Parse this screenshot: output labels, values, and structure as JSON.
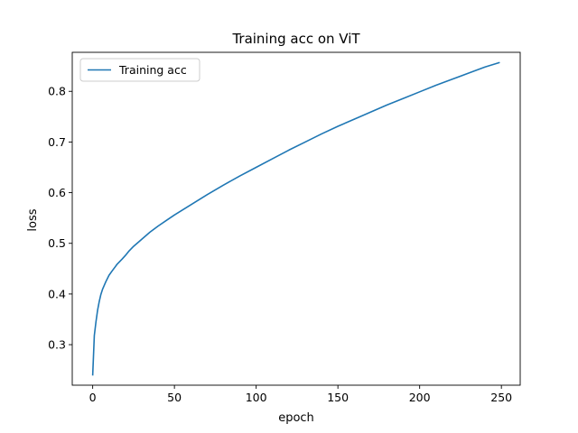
{
  "chart_data": {
    "type": "line",
    "title": "Training acc on ViT",
    "xlabel": "epoch",
    "ylabel": "loss",
    "xlim": [
      -12.5,
      261.5
    ],
    "ylim": [
      0.22,
      0.877
    ],
    "xticks": [
      0,
      50,
      100,
      150,
      200,
      250
    ],
    "yticks": [
      0.3,
      0.4,
      0.5,
      0.6,
      0.7,
      0.8
    ],
    "grid": false,
    "legend": {
      "position": "top-left",
      "entries": [
        "Training acc"
      ]
    },
    "colors": {
      "line": "#1f77b4",
      "axes": "#000000",
      "background": "#ffffff",
      "legend_border": "#cccccc"
    },
    "series": [
      {
        "name": "Training acc",
        "x": [
          0,
          1,
          2,
          3,
          4,
          5,
          6,
          8,
          10,
          12,
          15,
          18,
          20,
          22,
          25,
          30,
          35,
          40,
          45,
          50,
          55,
          60,
          70,
          80,
          90,
          100,
          110,
          120,
          130,
          140,
          150,
          160,
          170,
          180,
          190,
          200,
          210,
          220,
          230,
          240,
          249
        ],
        "y": [
          0.239,
          0.318,
          0.345,
          0.368,
          0.385,
          0.399,
          0.409,
          0.424,
          0.437,
          0.446,
          0.459,
          0.469,
          0.476,
          0.484,
          0.494,
          0.508,
          0.522,
          0.534,
          0.545,
          0.556,
          0.566,
          0.576,
          0.596,
          0.615,
          0.633,
          0.65,
          0.667,
          0.684,
          0.7,
          0.716,
          0.731,
          0.745,
          0.759,
          0.773,
          0.786,
          0.799,
          0.812,
          0.824,
          0.836,
          0.848,
          0.857
        ]
      }
    ]
  }
}
